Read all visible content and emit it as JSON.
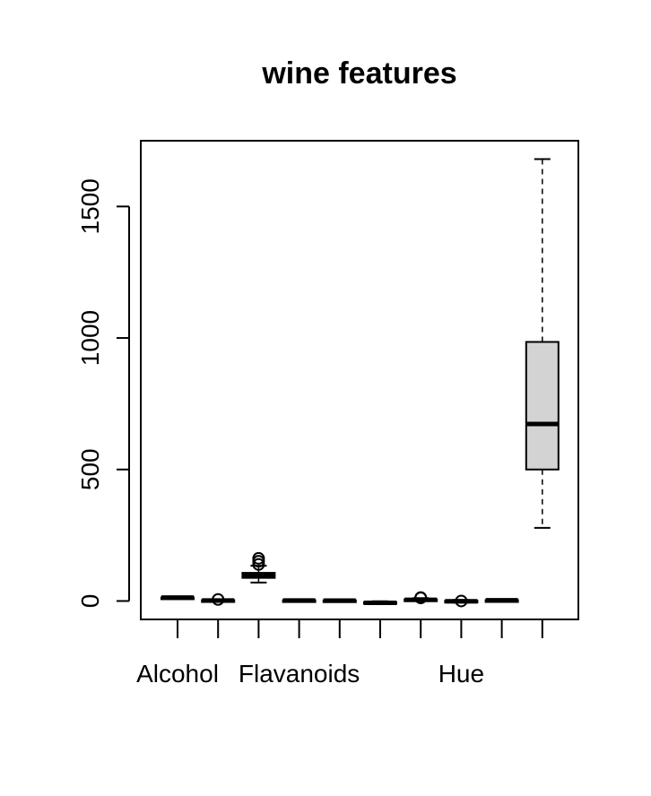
{
  "chart_data": {
    "type": "boxplot",
    "title": "wine features",
    "xlabel": "",
    "ylabel": "",
    "ylim": [
      -70,
      1750
    ],
    "yticks": [
      0,
      500,
      1000,
      1500
    ],
    "ytick_labels": [
      "0",
      "500",
      "1000",
      "1500"
    ],
    "x_tick_labels_shown": [
      "Alcohol",
      "",
      "",
      "Flavanoids",
      "",
      "",
      "",
      "Hue",
      "",
      ""
    ],
    "box_fill": "#d3d3d3",
    "boxes": [
      {
        "min": 11.0,
        "q1": 12.4,
        "median": 13.0,
        "q3": 13.7,
        "max": 14.8,
        "outliers": []
      },
      {
        "min": 0.7,
        "q1": 1.6,
        "median": 1.9,
        "q3": 3.1,
        "max": 5.8,
        "outliers": [
          5.8
        ]
      },
      {
        "min": 70,
        "q1": 88,
        "median": 98,
        "q3": 107,
        "max": 134,
        "outliers": [
          139,
          151,
          162
        ]
      },
      {
        "min": 0.3,
        "q1": 1.2,
        "median": 2.1,
        "q3": 2.9,
        "max": 5.1,
        "outliers": []
      },
      {
        "min": 0.4,
        "q1": 1.3,
        "median": 1.7,
        "q3": 2.5,
        "max": 3.9,
        "outliers": []
      },
      {
        "min": -12,
        "q1": -9,
        "median": -7,
        "q3": -4,
        "max": -1,
        "outliers": []
      },
      {
        "min": 1.3,
        "q1": 3.2,
        "median": 4.7,
        "q3": 6.2,
        "max": 10.8,
        "outliers": [
          11.8,
          13.0
        ]
      },
      {
        "min": -6,
        "q1": -3,
        "median": -1,
        "q3": 1,
        "max": 4,
        "outliers": [
          0
        ]
      },
      {
        "min": 1.3,
        "q1": 1.9,
        "median": 2.8,
        "q3": 3.2,
        "max": 4.0,
        "outliers": []
      },
      {
        "min": 278,
        "q1": 500,
        "median": 673,
        "q3": 985,
        "max": 1680,
        "outliers": []
      }
    ]
  }
}
